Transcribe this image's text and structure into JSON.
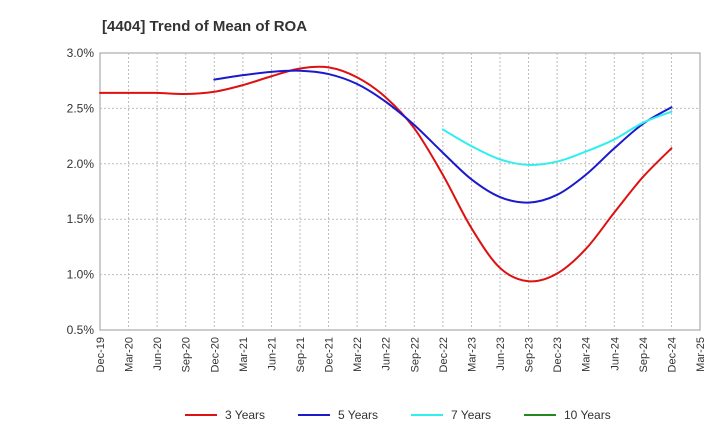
{
  "chart_data": {
    "type": "line",
    "title": "[4404]  Trend of Mean of ROA",
    "xlabel": "",
    "ylabel": "",
    "x": [
      "Dec-19",
      "Mar-20",
      "Jun-20",
      "Sep-20",
      "Dec-20",
      "Mar-21",
      "Jun-21",
      "Sep-21",
      "Dec-21",
      "Mar-22",
      "Jun-22",
      "Sep-22",
      "Dec-22",
      "Mar-23",
      "Jun-23",
      "Sep-23",
      "Dec-23",
      "Mar-24",
      "Jun-24",
      "Sep-24",
      "Dec-24",
      "Mar-25"
    ],
    "ylim": [
      0.5,
      3.0
    ],
    "yticks": [
      0.5,
      1.0,
      1.5,
      2.0,
      2.5,
      3.0
    ],
    "ytick_labels": [
      "0.5%",
      "1.0%",
      "1.5%",
      "2.0%",
      "2.5%",
      "3.0%"
    ],
    "grid": true,
    "legend_position": "bottom",
    "series": [
      {
        "name": "3 Years",
        "color": "#dd1111",
        "values": [
          2.64,
          2.64,
          2.64,
          2.63,
          2.65,
          2.71,
          2.79,
          2.86,
          2.87,
          2.78,
          2.6,
          2.32,
          1.9,
          1.42,
          1.06,
          0.94,
          1.01,
          1.23,
          1.56,
          1.88,
          2.14,
          null
        ]
      },
      {
        "name": "5 Years",
        "color": "#1a1acc",
        "values": [
          null,
          null,
          null,
          null,
          2.76,
          2.8,
          2.83,
          2.84,
          2.81,
          2.72,
          2.56,
          2.35,
          2.1,
          1.86,
          1.7,
          1.65,
          1.72,
          1.9,
          2.14,
          2.36,
          2.51,
          null
        ]
      },
      {
        "name": "7 Years",
        "color": "#33eeee",
        "values": [
          null,
          null,
          null,
          null,
          null,
          null,
          null,
          null,
          null,
          null,
          null,
          null,
          2.31,
          2.16,
          2.04,
          1.99,
          2.02,
          2.11,
          2.22,
          2.37,
          2.47,
          null
        ]
      },
      {
        "name": "10 Years",
        "color": "#228822",
        "values": [
          null,
          null,
          null,
          null,
          null,
          null,
          null,
          null,
          null,
          null,
          null,
          null,
          null,
          null,
          null,
          null,
          null,
          null,
          null,
          null,
          null,
          null
        ]
      }
    ]
  }
}
